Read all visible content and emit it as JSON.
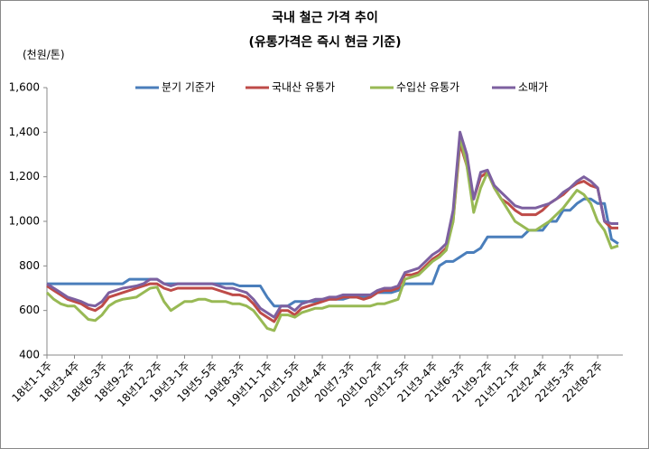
{
  "chart_data": {
    "type": "line",
    "title": "국내 철근 가격 추이",
    "subtitle": "(유통가격은 즉시 현금 기준)",
    "y_label": "(천원/톤)",
    "categories": [
      "18년1-1주",
      null,
      null,
      null,
      "18년3-4주",
      null,
      null,
      null,
      "18년6-3주",
      null,
      null,
      null,
      "18년9-2주",
      null,
      null,
      null,
      "18년12-2주",
      null,
      null,
      null,
      "19년3-1주",
      null,
      null,
      null,
      "19년5-5주",
      null,
      null,
      null,
      "19년8-3주",
      null,
      null,
      null,
      "19년11-1주",
      null,
      null,
      null,
      "20년1-5주",
      null,
      null,
      null,
      "20년4-4주",
      null,
      null,
      null,
      "20년7-3주",
      null,
      null,
      null,
      "20년10-2주",
      null,
      null,
      null,
      "20년12-5주",
      null,
      null,
      null,
      "21년3-4주",
      null,
      null,
      null,
      "21년6-3주",
      null,
      null,
      null,
      "21년9-2주",
      null,
      null,
      null,
      "21년12-1주",
      null,
      null,
      null,
      "22년2-4주",
      null,
      null,
      null,
      "22년5-3주",
      null,
      null,
      null,
      "22년8-2주",
      null,
      null,
      null
    ],
    "series": [
      {
        "name": "분기 기준가",
        "color": "#4a7ebb",
        "values": [
          720,
          720,
          720,
          720,
          720,
          720,
          720,
          720,
          720,
          720,
          720,
          720,
          740,
          740,
          740,
          740,
          740,
          720,
          720,
          720,
          720,
          720,
          720,
          720,
          720,
          720,
          720,
          720,
          710,
          710,
          710,
          710,
          660,
          620,
          620,
          620,
          640,
          640,
          640,
          640,
          650,
          650,
          650,
          650,
          660,
          660,
          660,
          660,
          680,
          680,
          680,
          690,
          720,
          720,
          720,
          720,
          720,
          800,
          820,
          820,
          840,
          860,
          860,
          880,
          930,
          930,
          930,
          930,
          930,
          930,
          960,
          960,
          960,
          1000,
          1000,
          1050,
          1050,
          1080,
          1100,
          1100,
          1080,
          1080,
          920,
          900
        ]
      },
      {
        "name": "국내산 유통가",
        "color": "#be4b48",
        "values": [
          710,
          690,
          670,
          650,
          640,
          630,
          610,
          600,
          620,
          660,
          670,
          680,
          690,
          700,
          710,
          720,
          720,
          700,
          690,
          700,
          700,
          700,
          700,
          700,
          700,
          690,
          680,
          670,
          670,
          660,
          630,
          590,
          570,
          550,
          600,
          600,
          580,
          610,
          620,
          630,
          640,
          650,
          650,
          660,
          660,
          660,
          650,
          660,
          680,
          690,
          690,
          700,
          760,
          760,
          770,
          800,
          830,
          850,
          880,
          1000,
          1350,
          1250,
          1100,
          1200,
          1220,
          1150,
          1100,
          1080,
          1050,
          1030,
          1030,
          1030,
          1050,
          1080,
          1100,
          1120,
          1150,
          1170,
          1180,
          1160,
          1150,
          1000,
          970,
          970
        ]
      },
      {
        "name": "수입산 유통가",
        "color": "#98b954",
        "values": [
          680,
          650,
          630,
          620,
          620,
          590,
          560,
          555,
          580,
          620,
          640,
          650,
          655,
          660,
          680,
          700,
          705,
          640,
          600,
          620,
          640,
          640,
          650,
          650,
          640,
          640,
          640,
          630,
          630,
          620,
          600,
          560,
          520,
          510,
          580,
          580,
          570,
          590,
          600,
          610,
          610,
          620,
          620,
          620,
          620,
          620,
          620,
          620,
          630,
          630,
          640,
          650,
          740,
          750,
          760,
          790,
          820,
          840,
          870,
          1000,
          1380,
          1250,
          1040,
          1150,
          1220,
          1150,
          1100,
          1050,
          1000,
          980,
          960,
          960,
          980,
          1000,
          1030,
          1060,
          1100,
          1140,
          1120,
          1080,
          1000,
          960,
          880,
          890
        ]
      },
      {
        "name": "소매가",
        "color": "#7d60a0",
        "values": [
          720,
          700,
          680,
          660,
          650,
          640,
          625,
          620,
          640,
          680,
          690,
          700,
          705,
          710,
          720,
          740,
          740,
          720,
          710,
          720,
          720,
          720,
          720,
          720,
          720,
          710,
          700,
          700,
          690,
          680,
          650,
          610,
          590,
          570,
          620,
          620,
          600,
          630,
          640,
          650,
          650,
          660,
          660,
          670,
          670,
          670,
          670,
          670,
          690,
          700,
          700,
          710,
          770,
          780,
          790,
          820,
          850,
          870,
          900,
          1050,
          1400,
          1300,
          1100,
          1220,
          1230,
          1160,
          1130,
          1100,
          1070,
          1060,
          1060,
          1060,
          1070,
          1080,
          1100,
          1130,
          1150,
          1180,
          1200,
          1180,
          1150,
          1000,
          990,
          990
        ]
      }
    ],
    "ylim": [
      400,
      1600
    ],
    "yticks": [
      400,
      600,
      800,
      {
        "value": 1000,
        "label": "1,000"
      },
      {
        "value": 1200,
        "label": "1,200"
      },
      {
        "value": 1400,
        "label": "1,400"
      },
      {
        "value": 1600,
        "label": "1,600"
      }
    ],
    "grid": false,
    "legend": "top"
  }
}
